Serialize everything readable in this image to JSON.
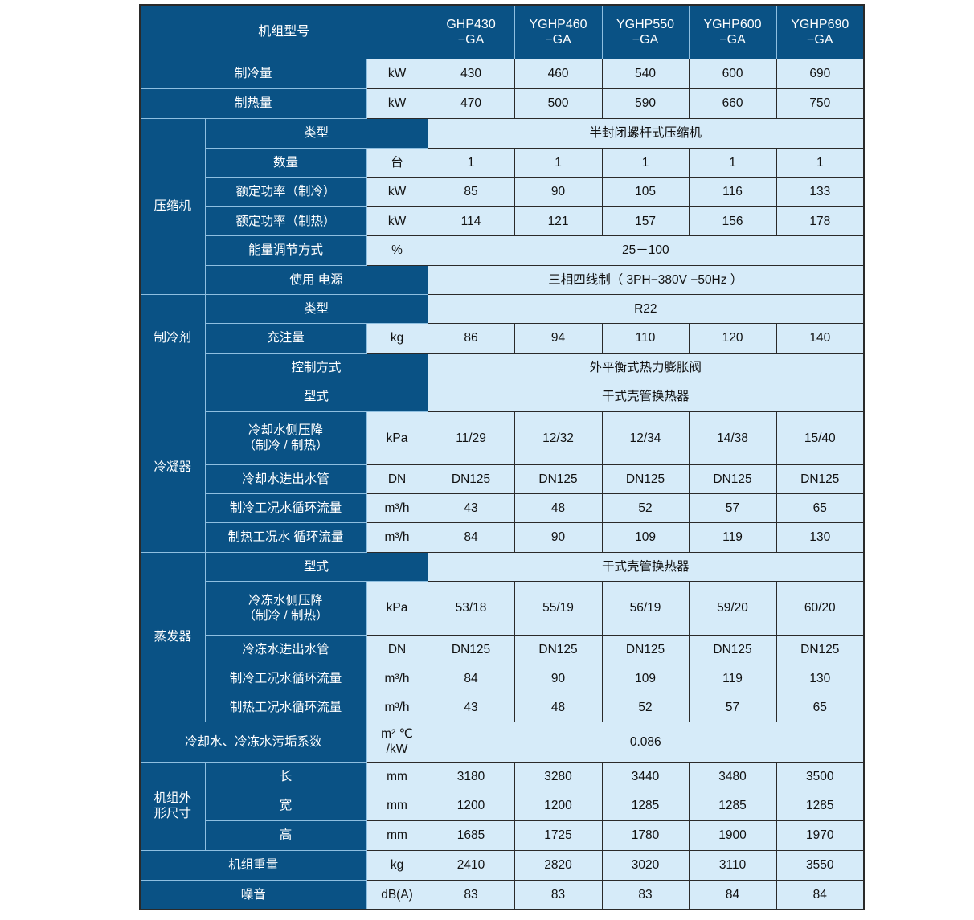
{
  "header": {
    "title": "机组型号",
    "models": [
      "GHP430\n−GA",
      "YGHP460\n−GA",
      "YGHP550\n−GA",
      "YGHP600\n−GA",
      "YGHP690\n−GA"
    ]
  },
  "colors": {
    "header_bg": "#0a5285",
    "cell_bg": "#d6ebf9"
  },
  "sections": [
    {
      "label": "制冷量",
      "unit": "kW",
      "values": [
        "430",
        "460",
        "540",
        "600",
        "690"
      ]
    },
    {
      "label": "制热量",
      "unit": "kW",
      "values": [
        "470",
        "500",
        "590",
        "660",
        "750"
      ]
    },
    {
      "group": "压缩机",
      "rows": [
        {
          "label": "类型",
          "span": "半封闭螺杆式压缩机"
        },
        {
          "label": "数量",
          "unit": "台",
          "values": [
            "1",
            "1",
            "1",
            "1",
            "1"
          ]
        },
        {
          "label": "额定功率（制冷）",
          "unit": "kW",
          "values": [
            "85",
            "90",
            "105",
            "116",
            "133"
          ]
        },
        {
          "label": "额定功率（制热）",
          "unit": "kW",
          "values": [
            "114",
            "121",
            "157",
            "156",
            "178"
          ]
        },
        {
          "label": "能量调节方式",
          "unit": "%",
          "span": "25－100"
        },
        {
          "label": "使用 电源",
          "span": "三相四线制（  3PH−380V −50Hz  ）"
        }
      ]
    },
    {
      "group": "制冷剂",
      "rows": [
        {
          "label": "类型",
          "span": "R22"
        },
        {
          "label": "充注量",
          "unit": "kg",
          "values": [
            "86",
            "94",
            "110",
            "120",
            "140"
          ]
        },
        {
          "label": "控制方式",
          "span": "外平衡式热力膨胀阀"
        }
      ]
    },
    {
      "group": "冷凝器",
      "rows": [
        {
          "label": "型式",
          "span": "干式壳管换热器"
        },
        {
          "label": "冷却水侧压降\n（制冷 / 制热）",
          "unit": "kPa",
          "values": [
            "11/29",
            "12/32",
            "12/34",
            "14/38",
            "15/40"
          ]
        },
        {
          "label": "冷却水进出水管",
          "unit": "DN",
          "values": [
            "DN125",
            "DN125",
            "DN125",
            "DN125",
            "DN125"
          ]
        },
        {
          "label": "制冷工况水循环流量",
          "unit": "m³/h",
          "values": [
            "43",
            "48",
            "52",
            "57",
            "65"
          ]
        },
        {
          "label": "制热工况水 循环流量",
          "unit": "m³/h",
          "values": [
            "84",
            "90",
            "109",
            "119",
            "130"
          ]
        }
      ]
    },
    {
      "group": "蒸发器",
      "rows": [
        {
          "label": "型式",
          "span": "干式壳管换热器"
        },
        {
          "label": "冷冻水侧压降\n（制冷 / 制热）",
          "unit": "kPa",
          "values": [
            "53/18",
            "55/19",
            "56/19",
            "59/20",
            "60/20"
          ]
        },
        {
          "label": "冷冻水进出水管",
          "unit": "DN",
          "values": [
            "DN125",
            "DN125",
            "DN125",
            "DN125",
            "DN125"
          ]
        },
        {
          "label": "制冷工况水循环流量",
          "unit": "m³/h",
          "values": [
            "84",
            "90",
            "109",
            "119",
            "130"
          ]
        },
        {
          "label": "制热工况水循环流量",
          "unit": "m³/h",
          "values": [
            "43",
            "48",
            "52",
            "57",
            "65"
          ]
        }
      ]
    },
    {
      "label": "冷却水、冷冻水污垢系数",
      "unit": "m² ℃\n/kW",
      "span": "0.086"
    },
    {
      "group": "机组外\n形尺寸",
      "rows": [
        {
          "label": "长",
          "unit": "mm",
          "values": [
            "3180",
            "3280",
            "3440",
            "3480",
            "3500"
          ]
        },
        {
          "label": "宽",
          "unit": "mm",
          "values": [
            "1200",
            "1200",
            "1285",
            "1285",
            "1285"
          ]
        },
        {
          "label": "高",
          "unit": "mm",
          "values": [
            "1685",
            "1725",
            "1780",
            "1900",
            "1970"
          ]
        }
      ]
    },
    {
      "label": "机组重量",
      "unit": "kg",
      "values": [
        "2410",
        "2820",
        "3020",
        "3110",
        "3550"
      ]
    },
    {
      "label": "噪音",
      "unit": "dB(A)",
      "values": [
        "83",
        "83",
        "83",
        "84",
        "84"
      ]
    }
  ]
}
